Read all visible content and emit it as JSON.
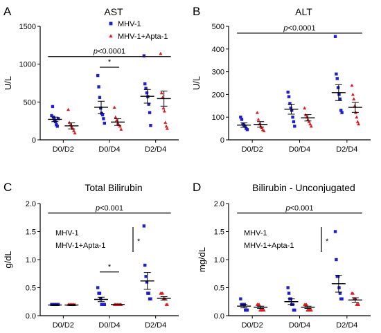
{
  "chart_data": [
    {
      "letter": "A",
      "type": "scatter",
      "title": "AST",
      "ylabel": "U/L",
      "ylim": [
        0,
        1500
      ],
      "yticks": [
        "0",
        "500",
        "1000",
        "1500"
      ],
      "ytickvals": [
        0,
        500,
        1000,
        1500
      ],
      "categories": [
        "D0/D2",
        "D0/D4",
        "D2/D4"
      ],
      "legend": [
        {
          "name": "MHV-1",
          "marker": "square",
          "color": "#1f1fd1"
        },
        {
          "name": "MHV-1+Apta-1",
          "marker": "triangle",
          "color": "#e01b24"
        }
      ],
      "series": [
        {
          "name": "MHV-1",
          "color": "#1f1fd1",
          "marker": "square",
          "points": [
            [
              320,
              440,
              300,
              260,
              240,
              200,
              180,
              280
            ],
            [
              850,
              700,
              560,
              420,
              350,
              330,
              280,
              220
            ],
            [
              1110,
              740,
              680,
              620,
              570,
              470,
              360,
              190
            ]
          ],
          "means": [
            270,
            430,
            575
          ],
          "sems": [
            30,
            80,
            90
          ]
        },
        {
          "name": "MHV-1+Apta-1",
          "color": "#e01b24",
          "marker": "triangle",
          "points": [
            [
              400,
              230,
              200,
              180,
              150,
              120,
              90
            ],
            [
              430,
              300,
              260,
              220,
              200,
              180,
              140
            ],
            [
              1140,
              620,
              560,
              420,
              380,
              230,
              180,
              150
            ]
          ],
          "means": [
            185,
            235,
            545
          ],
          "sems": [
            40,
            45,
            100
          ]
        }
      ],
      "annotations": [
        {
          "text": "*",
          "from": 1,
          "to": 1,
          "y": 960
        },
        {
          "text": "p<0.0001",
          "from": 0,
          "to": 2,
          "y": 1100
        }
      ]
    },
    {
      "letter": "B",
      "type": "scatter",
      "title": "ALT",
      "ylabel": "U/L",
      "ylim": [
        0,
        500
      ],
      "yticks": [
        "0",
        "100",
        "200",
        "300",
        "400",
        "500"
      ],
      "ytickvals": [
        0,
        100,
        200,
        300,
        400,
        500
      ],
      "categories": [
        "D0/D2",
        "D0/D4",
        "D2/D4"
      ],
      "series": [
        {
          "name": "MHV-1",
          "color": "#1f1fd1",
          "marker": "square",
          "points": [
            [
              100,
              90,
              70,
              65,
              60,
              50,
              45
            ],
            [
              210,
              190,
              160,
              140,
              130,
              100,
              80,
              60
            ],
            [
              455,
              290,
              270,
              230,
              200,
              180,
              130,
              120
            ]
          ],
          "means": [
            65,
            135,
            208
          ],
          "sems": [
            10,
            22,
            35
          ]
        },
        {
          "name": "MHV-1+Apta-1",
          "color": "#e01b24",
          "marker": "triangle",
          "points": [
            [
              120,
              90,
              70,
              60,
              55,
              45,
              40
            ],
            [
              140,
              110,
              100,
              90,
              80,
              70,
              60
            ],
            [
              240,
              200,
              180,
              150,
              120,
              100,
              80,
              70
            ]
          ],
          "means": [
            68,
            97,
            143
          ],
          "sems": [
            12,
            14,
            22
          ]
        }
      ],
      "annotations": [
        {
          "text": "p<0.0001",
          "from": 0,
          "to": 2,
          "y": 470
        }
      ]
    },
    {
      "letter": "C",
      "type": "scatter",
      "title": "Total Bilirubin",
      "ylabel": "g/dL",
      "ylim": [
        0,
        2.0
      ],
      "yticks": [
        "0.0",
        "0.5",
        "1.0",
        "1.5",
        "2.0"
      ],
      "ytickvals": [
        0,
        0.5,
        1.0,
        1.5,
        2.0
      ],
      "categories": [
        "D0/D2",
        "D0/D4",
        "D2/D4"
      ],
      "series": [
        {
          "name": "MHV-1",
          "color": "#1f1fd1",
          "marker": "square",
          "points": [
            [
              0.2,
              0.2,
              0.2,
              0.2,
              0.2,
              0.2,
              0.2,
              0.2
            ],
            [
              0.5,
              0.4,
              0.4,
              0.3,
              0.2,
              0.2,
              0.2,
              0.2
            ],
            [
              1.6,
              0.9,
              0.7,
              0.6,
              0.4,
              0.4,
              0.3,
              0.3
            ]
          ],
          "means": [
            0.19,
            0.29,
            0.62
          ],
          "sems": [
            0.01,
            0.04,
            0.15
          ]
        },
        {
          "name": "MHV-1+Apta-1",
          "color": "#e01b24",
          "marker": "triangle",
          "points": [
            [
              0.2,
              0.2,
              0.2,
              0.2,
              0.2,
              0.2,
              0.2
            ],
            [
              0.2,
              0.2,
              0.2,
              0.2,
              0.2,
              0.2,
              0.2,
              0.2
            ],
            [
              0.4,
              0.4,
              0.4,
              0.3,
              0.3,
              0.3,
              0.2,
              0.2
            ]
          ],
          "means": [
            0.19,
            0.2,
            0.31
          ],
          "sems": [
            0.01,
            0.0,
            0.03
          ]
        }
      ],
      "legend_box": [
        {
          "name": "MHV-1",
          "marker": "square",
          "color": "#1f1fd1"
        },
        {
          "name": "MHV-1+Apta-1",
          "marker": "triangle",
          "color": "#e01b24"
        }
      ],
      "bracket_star": "*",
      "annotations": [
        {
          "text": "*",
          "from": 1,
          "to": 1,
          "y": 0.78
        },
        {
          "text": "p<0.001",
          "from": 0,
          "to": 2,
          "y": 1.83
        }
      ]
    },
    {
      "letter": "D",
      "type": "scatter",
      "title": "Bilirubin - Unconjugated",
      "ylabel": "mg/dL",
      "ylim": [
        0,
        2.0
      ],
      "yticks": [
        "0.0",
        "0.5",
        "1.0",
        "1.5",
        "2.0"
      ],
      "ytickvals": [
        0,
        0.5,
        1.0,
        1.5,
        2.0
      ],
      "categories": [
        "D0/D2",
        "D0/D4",
        "D2/D4"
      ],
      "series": [
        {
          "name": "MHV-1",
          "color": "#1f1fd1",
          "marker": "square",
          "points": [
            [
              0.3,
              0.2,
              0.2,
              0.2,
              0.2,
              0.1,
              0.1,
              0.1
            ],
            [
              0.5,
              0.4,
              0.3,
              0.3,
              0.2,
              0.2,
              0.1,
              0.1
            ],
            [
              1.5,
              1.0,
              0.7,
              0.7,
              0.5,
              0.4,
              0.3,
              0.3
            ]
          ],
          "means": [
            0.17,
            0.25,
            0.57
          ],
          "sems": [
            0.03,
            0.05,
            0.15
          ]
        },
        {
          "name": "MHV-1+Apta-1",
          "color": "#e01b24",
          "marker": "triangle",
          "points": [
            [
              0.2,
              0.2,
              0.2,
              0.1,
              0.1,
              0.1,
              0.1,
              0.1
            ],
            [
              0.2,
              0.2,
              0.2,
              0.1,
              0.1,
              0.1,
              0.1,
              0.1
            ],
            [
              0.4,
              0.4,
              0.3,
              0.3,
              0.3,
              0.2,
              0.2,
              0.2
            ]
          ],
          "means": [
            0.15,
            0.15,
            0.28
          ],
          "sems": [
            0.02,
            0.02,
            0.04
          ]
        }
      ],
      "legend_box": [
        {
          "name": "MHV-1",
          "marker": "square",
          "color": "#1f1fd1"
        },
        {
          "name": "MHV-1+Apta-1",
          "marker": "triangle",
          "color": "#e01b24"
        }
      ],
      "bracket_star": "*",
      "annotations": [
        {
          "text": "p<0.001",
          "from": 0,
          "to": 2,
          "y": 1.83
        }
      ]
    }
  ]
}
